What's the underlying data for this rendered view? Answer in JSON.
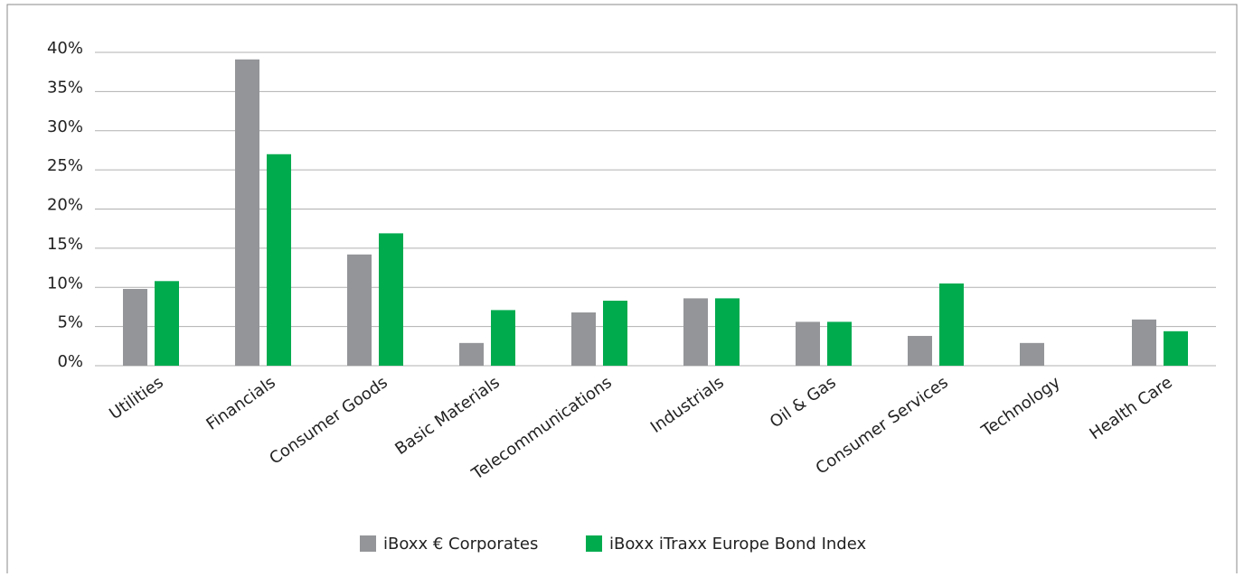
{
  "chart_data": {
    "type": "bar",
    "categories": [
      "Utilities",
      "Financials",
      "Consumer Goods",
      "Basic Materials",
      "Telecommunications",
      "Industrials",
      "Oil & Gas",
      "Consumer Services",
      "Technology",
      "Health Care"
    ],
    "series": [
      {
        "name": "iBoxx € Corporates",
        "color": "#939598",
        "values": [
          9.8,
          39.1,
          14.2,
          2.9,
          6.8,
          8.6,
          5.6,
          3.8,
          2.9,
          5.9
        ]
      },
      {
        "name": "iBoxx iTraxx Europe Bond Index",
        "color": "#00ab4e",
        "values": [
          10.8,
          27.0,
          16.9,
          7.1,
          8.3,
          8.6,
          5.6,
          10.5,
          null,
          4.4
        ]
      }
    ],
    "ylim": [
      0,
      40
    ],
    "yticks": [
      {
        "value": 0,
        "label": "0%"
      },
      {
        "value": 5,
        "label": "5%"
      },
      {
        "value": 10,
        "label": "10%"
      },
      {
        "value": 15,
        "label": "15%"
      },
      {
        "value": 20,
        "label": "20%"
      },
      {
        "value": 25,
        "label": "25%"
      },
      {
        "value": 30,
        "label": "30%"
      },
      {
        "value": 35,
        "label": "35%"
      },
      {
        "value": 40,
        "label": "40%"
      }
    ],
    "grid": true,
    "legend": "bottom"
  }
}
